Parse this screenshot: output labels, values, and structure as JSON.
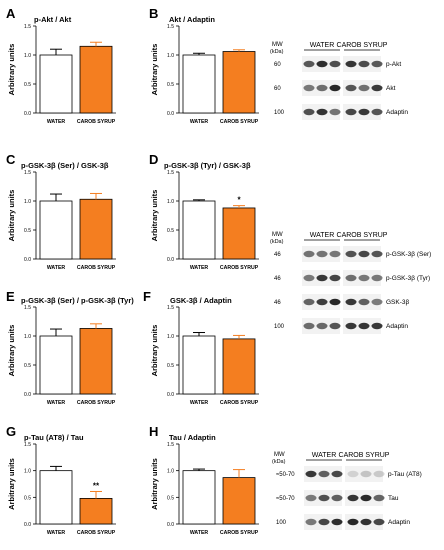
{
  "colors": {
    "water_fill": "#ffffff",
    "carob_fill": "#f47e20",
    "error_carob": "#f47e20",
    "axis": "#000000",
    "band": "#1a1a1a"
  },
  "chart_data": [
    {
      "letter": "A",
      "type": "bar",
      "title": "p-Akt / Akt",
      "ylabel": "Arbitrary units",
      "categories": [
        "WATER",
        "CAROB SYRUP"
      ],
      "values": [
        1.0,
        1.15
      ],
      "errors": [
        0.1,
        0.07
      ],
      "ylim": [
        0,
        1.5
      ],
      "yticks": [
        "0.0",
        "0.5",
        "1.0",
        "1.5"
      ],
      "annotations": [
        "",
        ""
      ]
    },
    {
      "letter": "B",
      "type": "bar",
      "title": "Akt / Adaptin",
      "ylabel": "Arbitrary units",
      "categories": [
        "WATER",
        "CAROB SYRUP"
      ],
      "values": [
        1.0,
        1.06
      ],
      "errors": [
        0.03,
        0.03
      ],
      "ylim": [
        0,
        1.5
      ],
      "yticks": [
        "0.0",
        "0.5",
        "1.0",
        "1.5"
      ],
      "annotations": [
        "",
        ""
      ]
    },
    {
      "letter": "C",
      "type": "bar",
      "title": "p-GSK-3β (Ser) / GSK-3β",
      "ylabel": "Arbitrary units",
      "categories": [
        "WATER",
        "CAROB SYRUP"
      ],
      "values": [
        1.0,
        1.03
      ],
      "errors": [
        0.12,
        0.1
      ],
      "ylim": [
        0,
        1.5
      ],
      "yticks": [
        "0.0",
        "0.5",
        "1.0",
        "1.5"
      ],
      "annotations": [
        "",
        ""
      ]
    },
    {
      "letter": "D",
      "type": "bar",
      "title": "p-GSK-3β (Tyr) / GSK-3β",
      "ylabel": "Arbitrary units",
      "categories": [
        "WATER",
        "CAROB SYRUP"
      ],
      "values": [
        1.0,
        0.88
      ],
      "errors": [
        0.02,
        0.04
      ],
      "ylim": [
        0,
        1.5
      ],
      "yticks": [
        "0.0",
        "0.5",
        "1.0",
        "1.5"
      ],
      "annotations": [
        "",
        "*"
      ]
    },
    {
      "letter": "E",
      "type": "bar",
      "title": "p-GSK-3β (Ser) / p-GSK-3β (Tyr)",
      "ylabel": "Arbitrary units",
      "categories": [
        "WATER",
        "CAROB SYRUP"
      ],
      "values": [
        1.0,
        1.13
      ],
      "errors": [
        0.12,
        0.08
      ],
      "ylim": [
        0,
        1.5
      ],
      "yticks": [
        "0.0",
        "0.5",
        "1.0",
        "1.5"
      ],
      "annotations": [
        "",
        ""
      ]
    },
    {
      "letter": "F",
      "type": "bar",
      "title": "GSK-3β / Adaptin",
      "ylabel": "Arbitrary units",
      "categories": [
        "WATER",
        "CAROB SYRUP"
      ],
      "values": [
        1.0,
        0.95
      ],
      "errors": [
        0.06,
        0.06
      ],
      "ylim": [
        0,
        1.5
      ],
      "yticks": [
        "0.0",
        "0.5",
        "1.0",
        "1.5"
      ],
      "annotations": [
        "",
        ""
      ]
    },
    {
      "letter": "G",
      "type": "bar",
      "title": "p-Tau (AT8) / Tau",
      "ylabel": "Arbitrary units",
      "categories": [
        "WATER",
        "CAROB SYRUP"
      ],
      "values": [
        1.0,
        0.48
      ],
      "errors": [
        0.08,
        0.13
      ],
      "ylim": [
        0,
        1.5
      ],
      "yticks": [
        "0.0",
        "0.5",
        "1.0",
        "1.5"
      ],
      "annotations": [
        "",
        "**"
      ]
    },
    {
      "letter": "H",
      "type": "bar",
      "title": "Tau / Adaptin",
      "ylabel": "Arbitrary units",
      "categories": [
        "WATER",
        "CAROB SYRUP"
      ],
      "values": [
        1.0,
        0.87
      ],
      "errors": [
        0.03,
        0.15
      ],
      "ylim": [
        0,
        1.5
      ],
      "yticks": [
        "0.0",
        "0.5",
        "1.0",
        "1.5"
      ],
      "annotations": [
        "",
        ""
      ]
    }
  ],
  "blots": [
    {
      "mw_header": "MW (kDa)",
      "groups": [
        "WATER",
        "CAROB SYRUP"
      ],
      "rows": [
        {
          "mw": "60",
          "label": "p-Akt"
        },
        {
          "mw": "60",
          "label": "Akt"
        },
        {
          "mw": "100",
          "label": "Adaptin"
        }
      ]
    },
    {
      "mw_header": "MW (kDa)",
      "groups": [
        "WATER",
        "CAROB SYRUP"
      ],
      "rows": [
        {
          "mw": "46",
          "label": "p-GSK-3β (Ser)"
        },
        {
          "mw": "46",
          "label": "p-GSK-3β (Tyr)"
        },
        {
          "mw": "46",
          "label": "GSK-3β"
        },
        {
          "mw": "100",
          "label": "Adaptin"
        }
      ]
    },
    {
      "mw_header": "MW (kDa)",
      "groups": [
        "WATER",
        "CAROB SYRUP"
      ],
      "rows": [
        {
          "mw": "≈50-70",
          "label": "p-Tau (AT8)"
        },
        {
          "mw": "≈50-70",
          "label": "Tau"
        },
        {
          "mw": "100",
          "label": "Adaptin"
        }
      ]
    }
  ]
}
